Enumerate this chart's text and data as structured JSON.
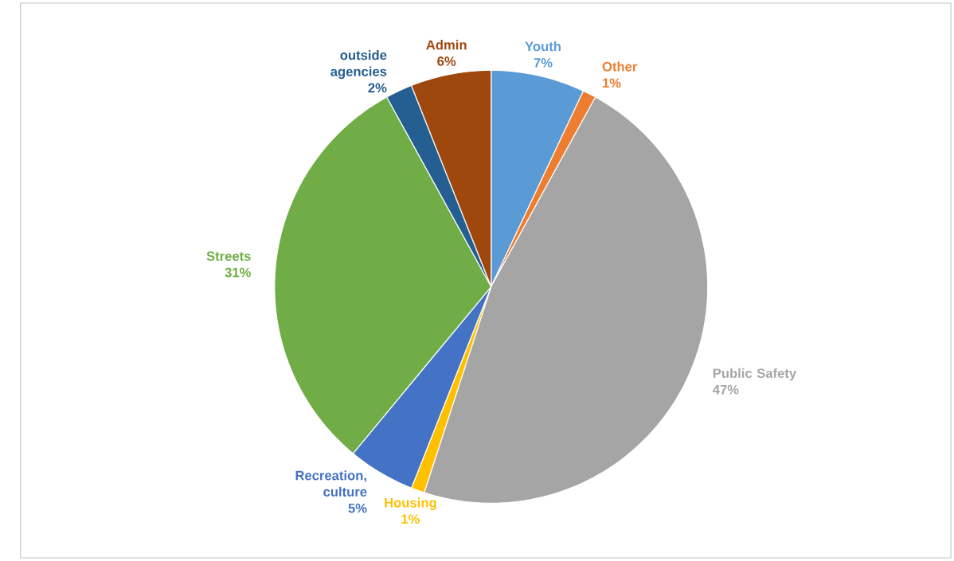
{
  "chart_data": {
    "type": "pie",
    "categories": [
      "Youth",
      "Other",
      "Public Safety",
      "Housing",
      "Recreation, culture",
      "Streets",
      "outside agencies",
      "Admin"
    ],
    "values": [
      7,
      1,
      47,
      1,
      5,
      31,
      2,
      6
    ],
    "value_labels": [
      "7%",
      "1%",
      "47%",
      "1%",
      "5%",
      "31%",
      "2%",
      "6%"
    ],
    "colors": [
      "#5b9bd5",
      "#ed7d31",
      "#a5a5a5",
      "#ffc000",
      "#4472c4",
      "#70ad47",
      "#255e91",
      "#9e480e"
    ]
  }
}
